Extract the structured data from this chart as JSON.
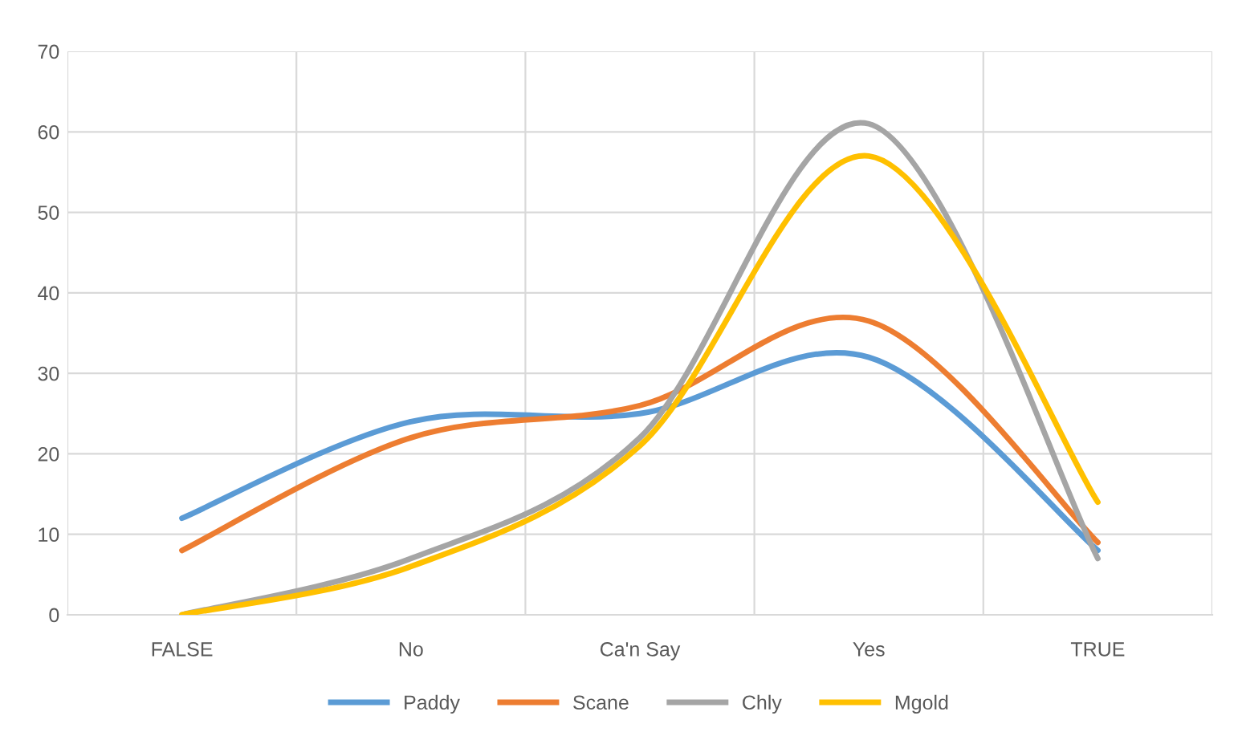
{
  "chart_data": {
    "type": "line",
    "categories": [
      "FALSE",
      "No",
      "Ca'n Say",
      "Yes",
      "TRUE"
    ],
    "series": [
      {
        "name": "Paddy",
        "color": "#5b9bd5",
        "values": [
          12,
          24,
          25,
          32,
          8
        ]
      },
      {
        "name": "Scane",
        "color": "#ed7d31",
        "values": [
          8,
          22,
          26,
          36.5,
          9
        ]
      },
      {
        "name": "Chly",
        "color": "#a5a5a5",
        "values": [
          0,
          7,
          22,
          61,
          7
        ]
      },
      {
        "name": "Mgold",
        "color": "#ffc000",
        "values": [
          0,
          6,
          21,
          57,
          14
        ]
      }
    ],
    "ylim": [
      0,
      70
    ],
    "yticks": [
      0,
      10,
      20,
      30,
      40,
      50,
      60,
      70
    ],
    "grid": true,
    "legend": "bottom",
    "marker": "none",
    "line_style": "solid"
  }
}
